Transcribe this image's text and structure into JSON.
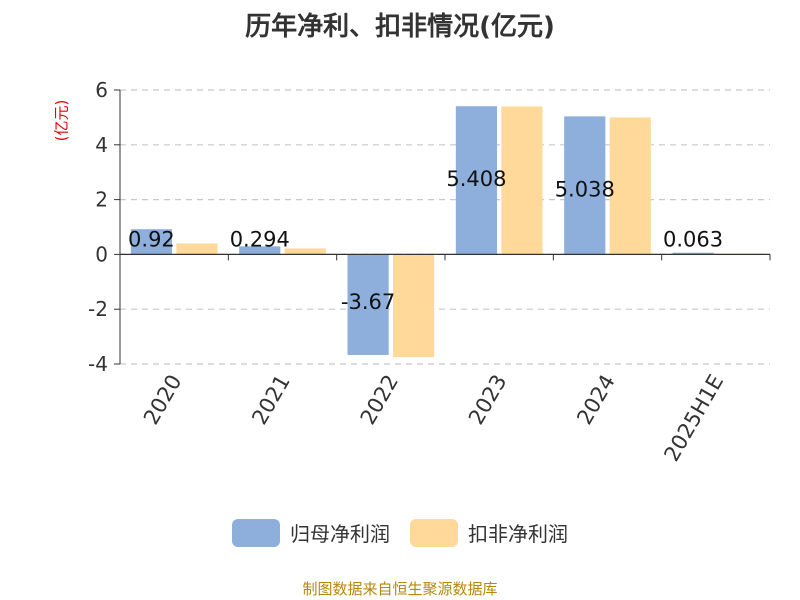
{
  "chart_data": {
    "type": "bar",
    "title": "历年净利、扣非情况(亿元)",
    "ylabel": "(亿元)",
    "xlabel": "",
    "categories": [
      "2020",
      "2021",
      "2022",
      "2023",
      "2024",
      "2025H1E"
    ],
    "series": [
      {
        "name": "归母净利润",
        "values": [
          0.92,
          0.294,
          -3.67,
          5.408,
          5.038,
          0.063
        ],
        "color": "#8eaedb"
      },
      {
        "name": "扣非净利润",
        "values": [
          0.4,
          0.22,
          -3.75,
          5.4,
          5.0,
          0.03
        ],
        "color": "#ffd999"
      }
    ],
    "data_labels": [
      "0.92",
      "0.294",
      "-3.67",
      "5.408",
      "5.038",
      "0.063"
    ],
    "ylim": [
      -4,
      6
    ],
    "yticks": [
      6,
      4,
      2,
      0,
      -2,
      -4
    ],
    "grid": true,
    "legend": "bottom"
  },
  "source": "制图数据来自恒生聚源数据库"
}
